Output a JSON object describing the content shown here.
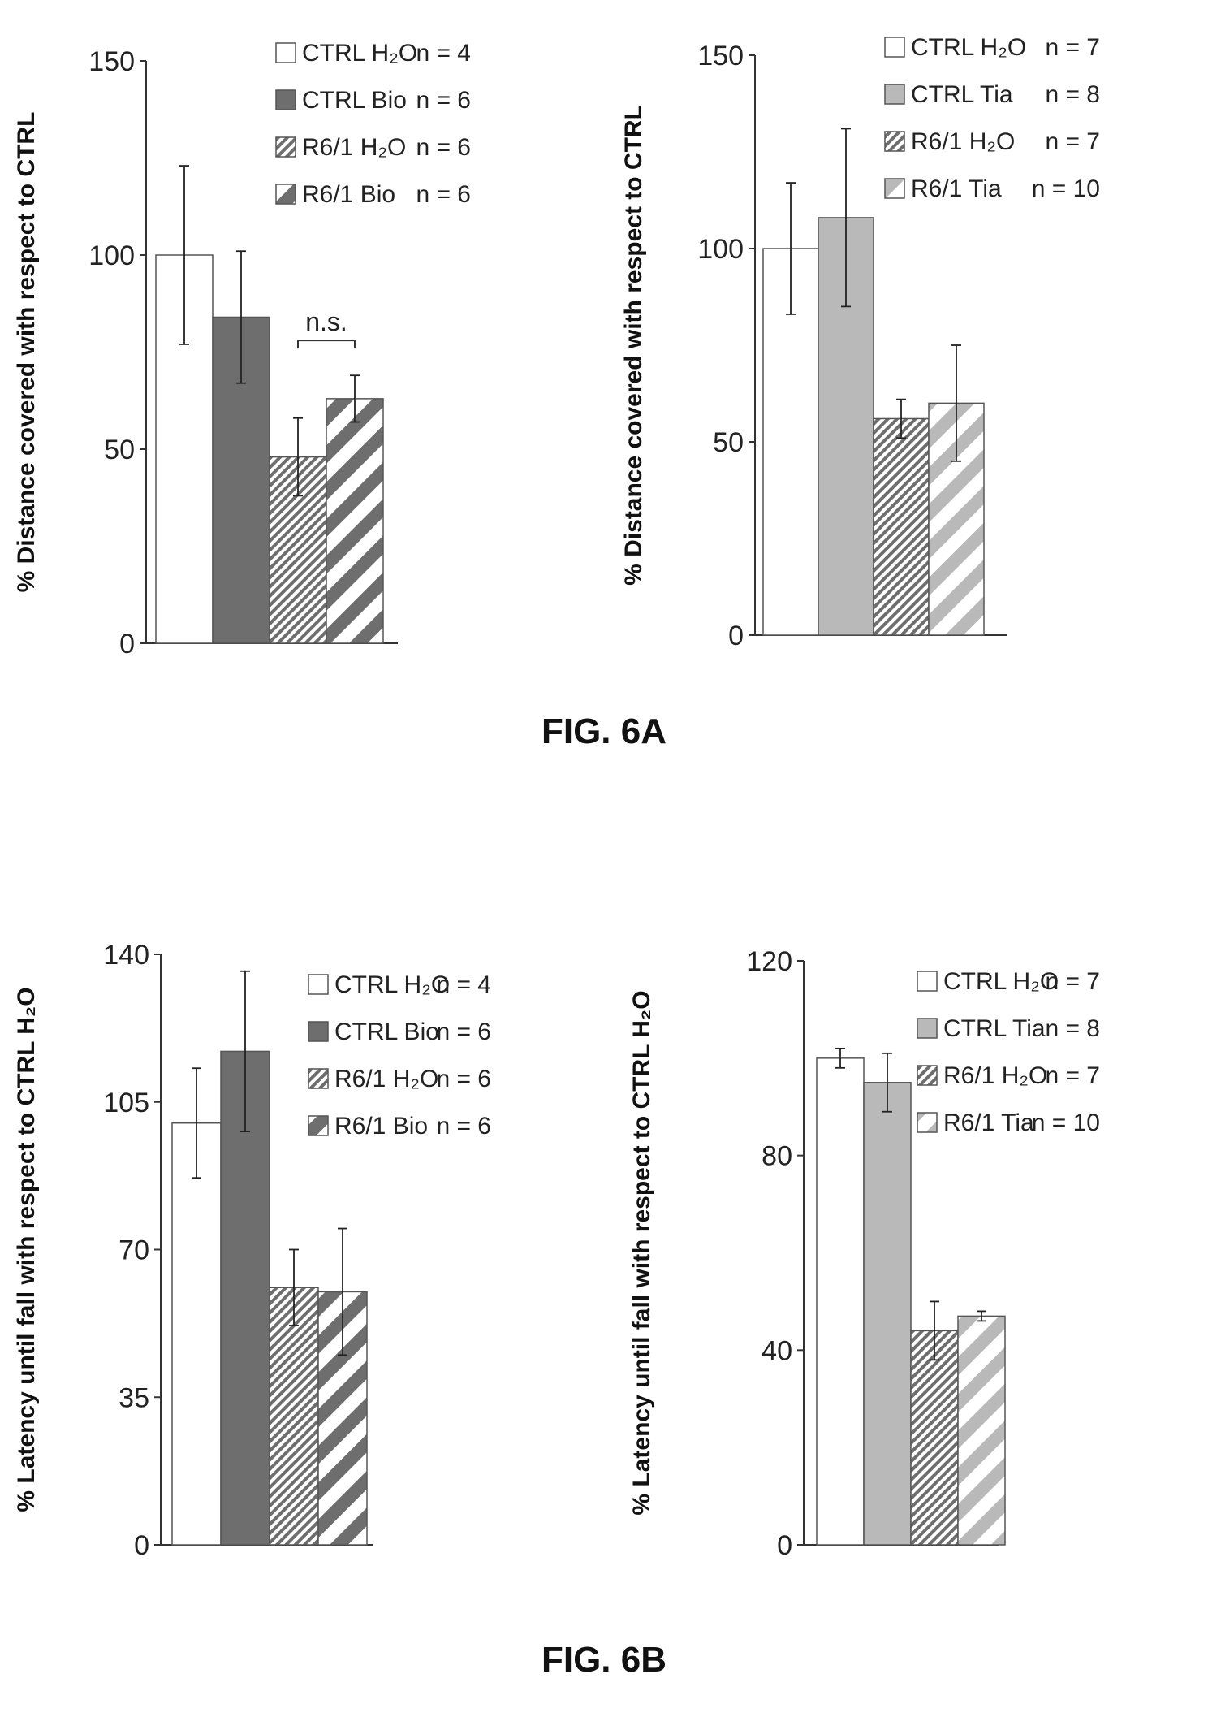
{
  "figure_labels": [
    "FIG. 6A",
    "FIG. 6B"
  ],
  "chart_data": [
    {
      "type": "bar",
      "ylabel": "% Distance covered with respect to CTRL",
      "yticks": [
        0,
        50,
        100,
        150
      ],
      "ylim": [
        0,
        150
      ],
      "grid": false,
      "legend_position": "top-right",
      "categories": [
        "CTRL H2O",
        "CTRL Bio",
        "R6/1 H2O",
        "R6/1 Bio"
      ],
      "series": [
        {
          "name": "CTRL H₂O",
          "n": "n = 4",
          "value": 100,
          "error": 23,
          "fill": "#ffffff",
          "pattern": "solid",
          "color": "#ffffff"
        },
        {
          "name": "CTRL Bio",
          "n": "n = 6",
          "value": 84,
          "error": 17,
          "fill": "#6e6e6e",
          "pattern": "solid",
          "color": "#6e6e6e"
        },
        {
          "name": "R6/1 H₂O",
          "n": "n = 6",
          "value": 48,
          "error": 10,
          "fill": "#6e6e6e",
          "pattern": "hatch-thin",
          "color": "#6e6e6e"
        },
        {
          "name": "R6/1 Bio",
          "n": "n = 6",
          "value": 63,
          "error": 6,
          "fill": "#6e6e6e",
          "pattern": "hatch",
          "color": "#6e6e6e"
        }
      ],
      "annotations": [
        {
          "text": "n.s.",
          "between": [
            2,
            3
          ],
          "y": 78
        }
      ]
    },
    {
      "type": "bar",
      "ylabel": "% Distance covered with respect to CTRL",
      "yticks": [
        0,
        50,
        100,
        150
      ],
      "ylim": [
        0,
        150
      ],
      "grid": false,
      "legend_position": "top-right",
      "categories": [
        "CTRL H2O",
        "CTRL Tia",
        "R6/1 H2O",
        "R6/1 Tia"
      ],
      "series": [
        {
          "name": "CTRL H₂O",
          "n": "n = 7",
          "value": 100,
          "error": 17,
          "fill": "#ffffff",
          "pattern": "solid",
          "color": "#ffffff"
        },
        {
          "name": "CTRL Tia",
          "n": "n = 8",
          "value": 108,
          "error": 23,
          "fill": "#b9b9b9",
          "pattern": "solid",
          "color": "#b9b9b9"
        },
        {
          "name": "R6/1 H₂O",
          "n": "n = 7",
          "value": 56,
          "error": 5,
          "fill": "#6e6e6e",
          "pattern": "hatch-thin",
          "color": "#6e6e6e"
        },
        {
          "name": "R6/1 Tia",
          "n": "n = 10",
          "value": 60,
          "error": 15,
          "fill": "#b9b9b9",
          "pattern": "hatch",
          "color": "#b9b9b9"
        }
      ],
      "annotations": []
    },
    {
      "type": "bar",
      "ylabel": "% Latency until fall with respect to CTRL H₂O",
      "yticks": [
        0,
        35,
        70,
        105,
        140
      ],
      "ylim": [
        0,
        140
      ],
      "grid": false,
      "legend_position": "top-right",
      "categories": [
        "CTRL H2O",
        "CTRL Bio",
        "R6/1 H2O",
        "R6/1 Bio"
      ],
      "series": [
        {
          "name": "CTRL H₂O",
          "n": "n = 4",
          "value": 100,
          "error": 13,
          "fill": "#ffffff",
          "pattern": "solid",
          "color": "#ffffff"
        },
        {
          "name": "CTRL Bio",
          "n": "n = 6",
          "value": 117,
          "error": 19,
          "fill": "#6e6e6e",
          "pattern": "solid",
          "color": "#6e6e6e"
        },
        {
          "name": "R6/1 H₂O",
          "n": "n = 6",
          "value": 61,
          "error": 9,
          "fill": "#6e6e6e",
          "pattern": "hatch-thin",
          "color": "#6e6e6e"
        },
        {
          "name": "R6/1 Bio",
          "n": "n = 6",
          "value": 60,
          "error": 15,
          "fill": "#6e6e6e",
          "pattern": "hatch",
          "color": "#6e6e6e"
        }
      ],
      "annotations": []
    },
    {
      "type": "bar",
      "ylabel": "% Latency until fall with respect to CTRL H₂O",
      "yticks": [
        0,
        40,
        80,
        120
      ],
      "ylim": [
        0,
        120
      ],
      "grid": false,
      "legend_position": "top-right",
      "categories": [
        "CTRL H2O",
        "CTRL Tia",
        "R6/1 H2O",
        "R6/1 Tia"
      ],
      "series": [
        {
          "name": "CTRL H₂O",
          "n": "n = 7",
          "value": 100,
          "error": 2,
          "fill": "#ffffff",
          "pattern": "solid",
          "color": "#ffffff"
        },
        {
          "name": "CTRL Tia",
          "n": "n = 8",
          "value": 95,
          "error": 6,
          "fill": "#b9b9b9",
          "pattern": "solid",
          "color": "#b9b9b9"
        },
        {
          "name": "R6/1 H₂O",
          "n": "n = 7",
          "value": 44,
          "error": 6,
          "fill": "#6e6e6e",
          "pattern": "hatch-thin",
          "color": "#6e6e6e"
        },
        {
          "name": "R6/1 Tia",
          "n": "n = 10",
          "value": 47,
          "error": 1,
          "fill": "#b9b9b9",
          "pattern": "hatch",
          "color": "#b9b9b9"
        }
      ],
      "annotations": []
    }
  ]
}
